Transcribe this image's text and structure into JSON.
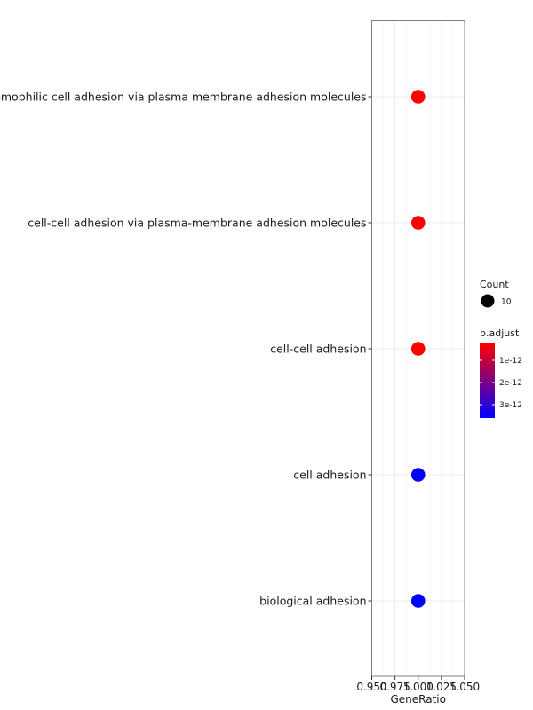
{
  "chart_data": {
    "type": "scatter",
    "xlabel": "GeneRatio",
    "xlim": [
      0.95,
      1.05
    ],
    "x_ticks": [
      "0.950",
      "0.975",
      "1.000",
      "1.025",
      "1.050"
    ],
    "categories": [
      "homophilic cell adhesion via plasma membrane adhesion molecules",
      "cell-cell adhesion via plasma-membrane adhesion molecules",
      "cell-cell adhesion",
      "cell adhesion",
      "biological adhesion"
    ],
    "points": [
      {
        "term": "homophilic cell adhesion via plasma membrane adhesion molecules",
        "gene_ratio": 1.0,
        "count": 10,
        "p_adjust": 2e-13
      },
      {
        "term": "cell-cell adhesion via plasma-membrane adhesion molecules",
        "gene_ratio": 1.0,
        "count": 10,
        "p_adjust": 2e-13
      },
      {
        "term": "cell-cell adhesion",
        "gene_ratio": 1.0,
        "count": 10,
        "p_adjust": 2e-13
      },
      {
        "term": "cell adhesion",
        "gene_ratio": 1.0,
        "count": 10,
        "p_adjust": 3.6e-12
      },
      {
        "term": "biological adhesion",
        "gene_ratio": 1.0,
        "count": 10,
        "p_adjust": 3.6e-12
      }
    ],
    "grid": true,
    "legend": {
      "position": "right",
      "size": {
        "title": "Count",
        "entries": [
          {
            "label": "10",
            "value": 10
          }
        ]
      },
      "color": {
        "title": "p.adjust",
        "low_color": "#ff0000",
        "high_color": "#0000ff",
        "range": [
          2e-13,
          3.6e-12
        ],
        "ticks": [
          {
            "label": "1e-12",
            "value": 1e-12
          },
          {
            "label": "2e-12",
            "value": 2e-12
          },
          {
            "label": "3e-12",
            "value": 3e-12
          }
        ]
      }
    }
  }
}
